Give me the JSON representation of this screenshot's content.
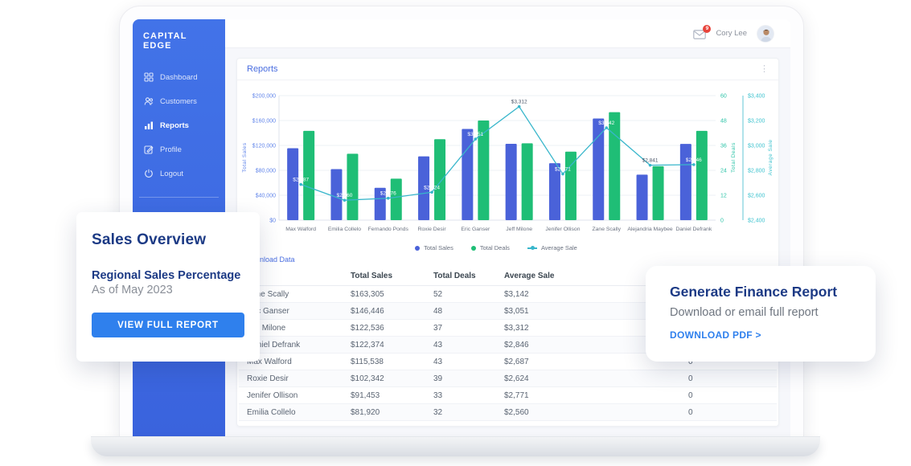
{
  "sidebar": {
    "logo": "CAPITAL EDGE",
    "items": [
      {
        "label": "Dashboard",
        "icon": "dashboard-icon",
        "active": false
      },
      {
        "label": "Customers",
        "icon": "customers-icon",
        "active": false
      },
      {
        "label": "Reports",
        "icon": "reports-icon",
        "active": true
      },
      {
        "label": "Profile",
        "icon": "profile-icon",
        "active": false
      },
      {
        "label": "Logout",
        "icon": "logout-icon",
        "active": false
      }
    ]
  },
  "topbar": {
    "user_name": "Cory Lee",
    "notification_badge": "9",
    "icons": [
      "mail-icon",
      "avatar"
    ]
  },
  "report_card": {
    "title": "Reports",
    "menu_glyph": "⋮",
    "download_link": "Download Data"
  },
  "chart_data": {
    "type": "bar",
    "title": "",
    "categories": [
      "Max Walford",
      "Emilia Collelo",
      "Fernando Ponds",
      "Roxie Desir",
      "Eric Ganser",
      "Jeff Milone",
      "Jenifer Ollison",
      "Zane Scally",
      "Alejandria Maybee",
      "Daniel Defrank"
    ],
    "series": [
      {
        "name": "Total Sales",
        "type": "bar",
        "axis": "left",
        "color": "#4a62d9",
        "values": [
          115538,
          81920,
          52000,
          102342,
          146446,
          122536,
          91453,
          163305,
          73000,
          122374
        ]
      },
      {
        "name": "Total Deals",
        "type": "bar",
        "axis": "deals",
        "color": "#1fbe76",
        "values": [
          43,
          32,
          20,
          39,
          48,
          37,
          33,
          52,
          26,
          43
        ]
      },
      {
        "name": "Average Sale",
        "type": "line",
        "axis": "avg",
        "color": "#38b6cb",
        "values": [
          2687,
          2560,
          2576,
          2624,
          3051,
          3312,
          2771,
          3142,
          2841,
          2846
        ],
        "labels": [
          "$2,687",
          "$2,560",
          "$2,576",
          "$2,624",
          "$3,051",
          "$3,312",
          "$2,771",
          "$3,142",
          "$2,841",
          "$2,846"
        ]
      }
    ],
    "axes": {
      "left": {
        "title": "Total Sales",
        "min": 0,
        "max": 200000,
        "ticks": [
          "$0",
          "$40,000",
          "$80,000",
          "$120,000",
          "$160,000",
          "$200,000"
        ]
      },
      "deals": {
        "title": "Total Deals",
        "min": 0,
        "max": 60,
        "ticks": [
          "0",
          "12",
          "24",
          "36",
          "48",
          "60"
        ]
      },
      "avg": {
        "title": "Average Sale",
        "min": 2400,
        "max": 3400,
        "ticks": [
          "$2,400",
          "$2,600",
          "$2,800",
          "$3,000",
          "$3,200",
          "$3,400"
        ]
      }
    },
    "legend": [
      "Total Sales",
      "Total Deals",
      "Average Sale"
    ],
    "grid": true,
    "legend_position": "bottom"
  },
  "table": {
    "headers": [
      "",
      "Total Sales",
      "Total Deals",
      "Average Sale",
      ""
    ],
    "rows": [
      [
        "Zane Scally",
        "$163,305",
        "52",
        "$3,142",
        "0"
      ],
      [
        "Eric Ganser",
        "$146,446",
        "48",
        "$3,051",
        "0"
      ],
      [
        "Jeff Milone",
        "$122,536",
        "37",
        "$3,312",
        "0"
      ],
      [
        "Daniel Defrank",
        "$122,374",
        "43",
        "$2,846",
        "0"
      ],
      [
        "Max Walford",
        "$115,538",
        "43",
        "$2,687",
        "0"
      ],
      [
        "Roxie Desir",
        "$102,342",
        "39",
        "$2,624",
        "0"
      ],
      [
        "Jenifer Ollison",
        "$91,453",
        "33",
        "$2,771",
        "0"
      ],
      [
        "Emilia Collelo",
        "$81,920",
        "32",
        "$2,560",
        "0"
      ]
    ]
  },
  "sales_overview_card": {
    "title": "Sales Overview",
    "subtitle": "Regional Sales Percentage",
    "date": "As of May 2023",
    "button_label": "VIEW FULL REPORT"
  },
  "finance_card": {
    "title": "Generate Finance Report",
    "subtitle": "Download or email full report",
    "link_label": "DOWNLOAD PDF >"
  },
  "colors": {
    "sidebar_blue": "#3e6ade",
    "accent_blue": "#4a6ee0",
    "button_blue": "#2f80ed",
    "navy_title": "#1c3a85",
    "bar_sales": "#4a62d9",
    "bar_deals": "#1fbe76",
    "line_avg": "#38b6cb",
    "badge_red": "#e8453c"
  }
}
